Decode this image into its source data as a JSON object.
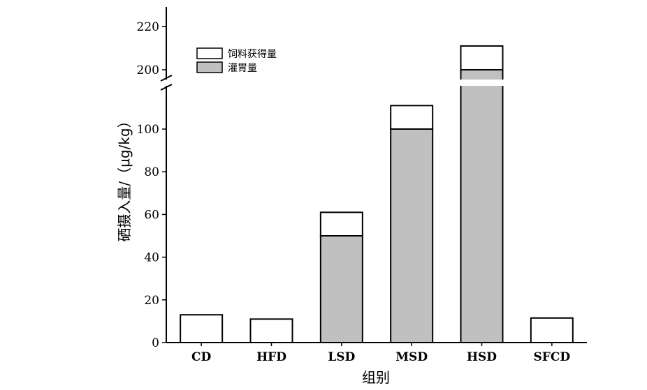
{
  "chart_data": {
    "type": "bar",
    "stacked": true,
    "title": "",
    "xlabel": "组别",
    "ylabel": "硒摄入量/（μg/kg）",
    "categories": [
      "CD",
      "HFD",
      "LSD",
      "MSD",
      "HSD",
      "SFCD"
    ],
    "series": [
      {
        "name": "灌胃量",
        "values": [
          0,
          0,
          50,
          100,
          200,
          0
        ],
        "color": "#c0c0c0"
      },
      {
        "name": "饲料获得量",
        "values": [
          13,
          11,
          11,
          11,
          11,
          11.5
        ],
        "color": "#ffffff"
      }
    ],
    "y_axis_broken": true,
    "y_segments": [
      {
        "range": [
          0,
          115
        ],
        "ticks": [
          0,
          20,
          40,
          60,
          80,
          100
        ]
      },
      {
        "range": [
          195,
          230
        ],
        "ticks": [
          200,
          220
        ]
      }
    ],
    "legend_position": "top-left",
    "grid": false
  }
}
